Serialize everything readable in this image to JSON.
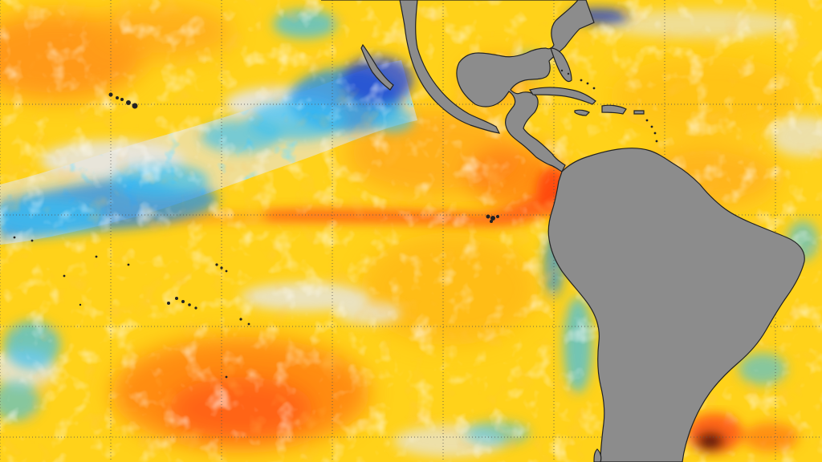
{
  "map": {
    "type": "sea-surface-temperature-anomaly",
    "region": "eastern-pacific-and-americas",
    "colors": {
      "ocean_base": "#ffd21a",
      "warm_strong": "#ff5a14",
      "warm_medium": "#ff8f1a",
      "neutral": "#e6e6e6",
      "cool_light": "#36bff5",
      "cool_medium": "#1f8ee8",
      "cool_strong": "#1c3fd0",
      "warm_extreme": "#4a0b0b",
      "land": "#8c8c8c",
      "coastline": "#222222",
      "graticule": "#555555"
    },
    "graticule": {
      "visible": true,
      "style": "dotted"
    },
    "features": [
      "north-america-landmass",
      "central-america-isthmus",
      "south-america-landmass",
      "caribbean-islands",
      "galapagos-islands",
      "hawaiian-islands",
      "pacific-island-chains",
      "equatorial-warm-tongue",
      "north-pacific-cool-band"
    ]
  }
}
